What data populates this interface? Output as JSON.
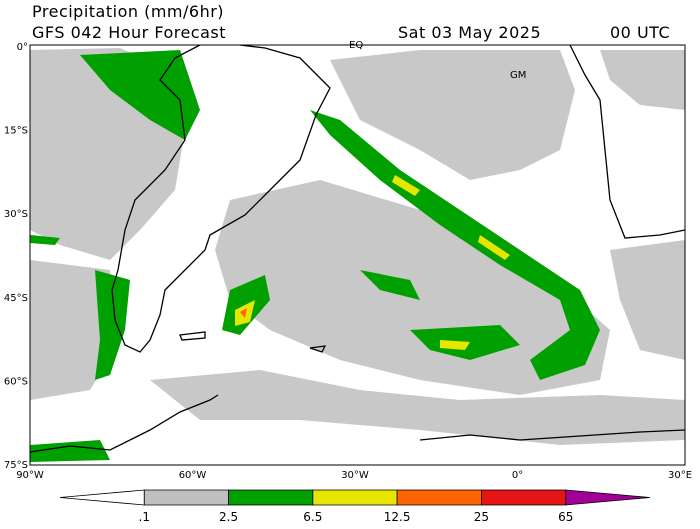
{
  "header": {
    "title": "Precipitation (mm/6hr)",
    "subtitle": "GFS 042 Hour Forecast",
    "date": "Sat 03 May 2025",
    "time": "00 UTC"
  },
  "map": {
    "lat_labels": [
      "0°",
      "15°S",
      "30°S",
      "45°S",
      "60°S",
      "75°S"
    ],
    "lon_labels": [
      "90°W",
      "60°W",
      "30°W",
      "0°",
      "30°E"
    ],
    "place_labels": [
      "EQ",
      "GM"
    ]
  },
  "colorbar": {
    "labels": [
      ".1",
      "2.5",
      "6.5",
      "12.5",
      "25",
      "65"
    ],
    "colors": [
      "#ffffff",
      "#c0c0c0",
      "#00a000",
      "#e6e600",
      "#ff6400",
      "#e61414",
      "#a00096"
    ]
  }
}
